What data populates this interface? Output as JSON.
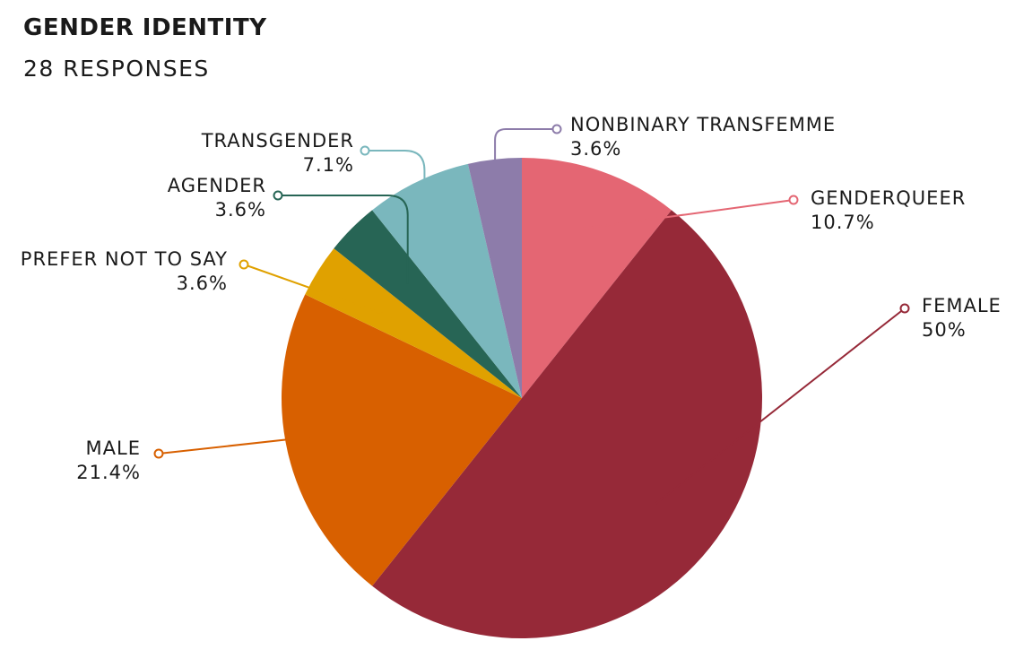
{
  "header": {
    "title": "GENDER IDENTITY",
    "subtitle": "28 RESPONSES"
  },
  "chart_data": {
    "type": "pie",
    "title": "GENDER IDENTITY",
    "subtitle": "28 RESPONSES",
    "start_angle": "top",
    "direction": "clockwise",
    "slices": [
      {
        "label": "GENDERQUEER",
        "value": 10.7,
        "display": "10.7%",
        "color": "#e46673"
      },
      {
        "label": "FEMALE",
        "value": 50,
        "display": "50%",
        "color": "#962938"
      },
      {
        "label": "MALE",
        "value": 21.4,
        "display": "21.4%",
        "color": "#d86000"
      },
      {
        "label": "PREFER NOT TO SAY",
        "value": 3.6,
        "display": "3.6%",
        "color": "#e0a100"
      },
      {
        "label": "AGENDER",
        "value": 3.6,
        "display": "3.6%",
        "color": "#276555"
      },
      {
        "label": "TRANSGENDER",
        "value": 7.1,
        "display": "7.1%",
        "color": "#7ab7bd"
      },
      {
        "label": "NONBINARY TRANSFEMME",
        "value": 3.6,
        "display": "3.6%",
        "color": "#8d7caa"
      }
    ]
  }
}
